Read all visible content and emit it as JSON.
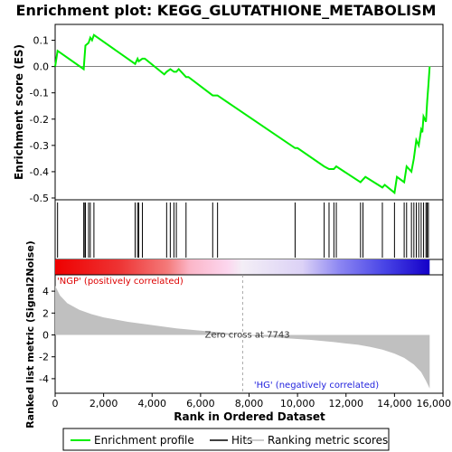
{
  "chart_data": {
    "type": "line",
    "title": "Enrichment plot: KEGG_GLUTATHIONE_METABOLISM",
    "es_panel": {
      "ylabel": "Enrichment score (ES)",
      "ylim": [
        -0.5,
        0.15
      ],
      "yticks": [
        0.1,
        0.0,
        -0.1,
        -0.2,
        -0.3,
        -0.4,
        -0.5
      ],
      "ytick_labels": [
        "0.1",
        "0.0",
        "-0.1",
        "-0.2",
        "-0.3",
        "-0.4",
        "-0.5"
      ],
      "series": [
        {
          "name": "Enrichment profile",
          "color": "#00ee00",
          "x": [
            0,
            100,
            1180,
            1200,
            1250,
            1380,
            1450,
            1520,
            1600,
            3300,
            3400,
            3450,
            3600,
            3700,
            4500,
            4600,
            4750,
            4900,
            5000,
            5100,
            5400,
            5500,
            6500,
            6700,
            9900,
            10000,
            11100,
            11300,
            11500,
            11600,
            12600,
            12700,
            12800,
            13500,
            13600,
            14000,
            14100,
            14400,
            14500,
            14700,
            14800,
            14900,
            15000,
            15100,
            15150,
            15200,
            15300,
            15350,
            15400,
            15450
          ],
          "y": [
            0.0,
            0.06,
            -0.01,
            0.02,
            0.08,
            0.09,
            0.11,
            0.1,
            0.12,
            0.01,
            0.03,
            0.02,
            0.03,
            0.03,
            -0.03,
            -0.02,
            -0.01,
            -0.02,
            -0.02,
            -0.01,
            -0.04,
            -0.04,
            -0.11,
            -0.11,
            -0.31,
            -0.31,
            -0.38,
            -0.39,
            -0.39,
            -0.38,
            -0.44,
            -0.43,
            -0.42,
            -0.46,
            -0.45,
            -0.48,
            -0.42,
            -0.44,
            -0.38,
            -0.4,
            -0.35,
            -0.28,
            -0.3,
            -0.24,
            -0.25,
            -0.19,
            -0.21,
            -0.13,
            -0.07,
            0.0
          ]
        }
      ],
      "hits_x": [
        100,
        1180,
        1200,
        1250,
        1380,
        1450,
        1600,
        3300,
        3400,
        3450,
        3600,
        4600,
        4750,
        4900,
        5000,
        5400,
        6500,
        6700,
        9900,
        11100,
        11300,
        11500,
        11600,
        12600,
        12700,
        13500,
        14000,
        14400,
        14500,
        14700,
        14800,
        14900,
        15000,
        15100,
        15200,
        15300,
        15350,
        15400
      ]
    },
    "rank_panel": {
      "ylabel": "Ranked list metric (Signal2Noise)",
      "xlabel": "Rank in Ordered Dataset",
      "ylim": [
        -5,
        5
      ],
      "yticks": [
        4,
        2,
        0,
        -2,
        -4
      ],
      "ytick_labels": [
        "4",
        "2",
        "0",
        "-2",
        "-4"
      ],
      "xlim": [
        0,
        16000
      ],
      "xticks": [
        0,
        2000,
        4000,
        6000,
        8000,
        10000,
        12000,
        14000,
        16000
      ],
      "xtick_labels": [
        "0",
        "2,000",
        "4,000",
        "6,000",
        "8,000",
        "10,000",
        "12,000",
        "14,000",
        "16,000"
      ],
      "metric_x": [
        0,
        200,
        500,
        1000,
        1500,
        2000,
        3000,
        4000,
        5000,
        6000,
        7000,
        7743,
        8500,
        9500,
        10500,
        11500,
        12500,
        13000,
        13500,
        14000,
        14400,
        14800,
        15100,
        15300,
        15450
      ],
      "metric_y": [
        4.5,
        3.6,
        2.9,
        2.3,
        1.9,
        1.6,
        1.2,
        0.9,
        0.6,
        0.4,
        0.2,
        0.0,
        -0.15,
        -0.3,
        -0.45,
        -0.65,
        -0.9,
        -1.1,
        -1.35,
        -1.7,
        -2.1,
        -2.7,
        -3.4,
        -4.2,
        -4.9
      ],
      "zero_cross_label": "Zero cross at 7743",
      "zero_cross_x": 7743,
      "pos_label": "'NGP' (positively correlated)",
      "neg_label": "'HG' (negatively correlated)"
    },
    "max_rank": 15450,
    "legend": {
      "placement": "bottom",
      "items": [
        {
          "label": "Enrichment profile",
          "color": "#00ee00"
        },
        {
          "label": "Hits",
          "color": "#000000"
        },
        {
          "label": "Ranking metric scores",
          "color": "#bbbbbb"
        }
      ]
    }
  }
}
